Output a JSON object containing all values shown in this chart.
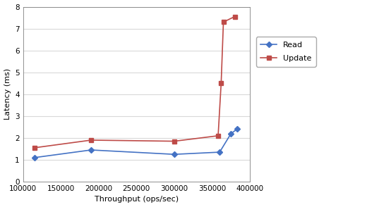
{
  "read_x": [
    115000,
    190000,
    300000,
    360000,
    375000,
    383000
  ],
  "read_y": [
    1.1,
    1.45,
    1.25,
    1.35,
    2.2,
    2.4
  ],
  "update_x": [
    115000,
    190000,
    300000,
    358000,
    362000,
    365000,
    380000
  ],
  "update_y": [
    1.55,
    1.9,
    1.85,
    2.1,
    4.5,
    7.3,
    7.55
  ],
  "read_color": "#4472C4",
  "update_color": "#BE4B48",
  "read_label": "Read",
  "update_label": "Update",
  "xlabel": "Throughput (ops/sec)",
  "ylabel": "Latency (ms)",
  "xlim": [
    100000,
    400000
  ],
  "ylim": [
    0,
    8
  ],
  "yticks": [
    0,
    1,
    2,
    3,
    4,
    5,
    6,
    7,
    8
  ],
  "xticks": [
    100000,
    150000,
    200000,
    250000,
    300000,
    350000,
    400000
  ],
  "background_color": "#FFFFFF",
  "grid_color": "#D9D9D9",
  "spine_color": "#808080"
}
